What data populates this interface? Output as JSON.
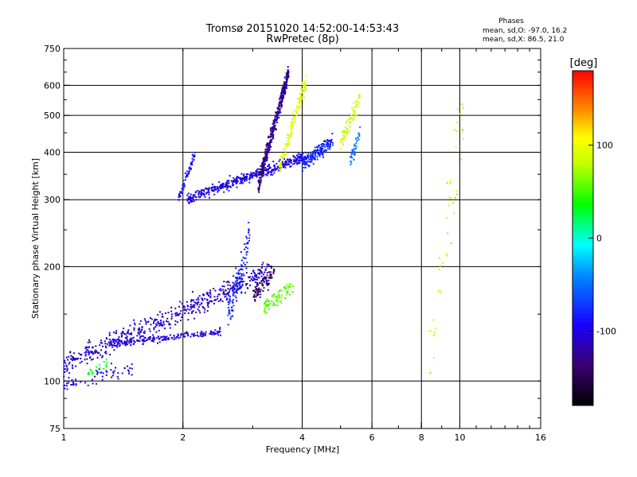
{
  "chart_data": {
    "type": "scatter",
    "title": "Tromsø 20151020 14:52:00-14:53:43",
    "subtitle": "RwPretec (8p)",
    "xlabel": "Frequency [MHz]",
    "ylabel": "Stationary phase Virtual Height [km]",
    "x_scale": "log",
    "y_scale": "log",
    "xlim": [
      1,
      16
    ],
    "ylim": [
      75,
      750
    ],
    "xticks": [
      1,
      2,
      4,
      6,
      8,
      10,
      16
    ],
    "xtick_labels": [
      "1",
      "2",
      "4",
      "6",
      "8",
      "10",
      "16"
    ],
    "yticks": [
      75,
      100,
      200,
      300,
      400,
      500,
      600,
      750
    ],
    "ytick_labels": [
      "75",
      "100",
      "200",
      "300",
      "400",
      "500",
      "600",
      "750"
    ],
    "grid": true,
    "stats": {
      "heading": "Phases",
      "line1": "mean, sd,O: -97.0, 16.2",
      "line2": "mean, sd,X:  86.5, 21.0"
    },
    "colorbar": {
      "label": "[deg]",
      "range": [
        -180,
        180
      ],
      "ticks": [
        -100,
        0,
        100
      ],
      "tick_labels": [
        "-100",
        "0",
        "100"
      ],
      "colormap": "rainbow"
    },
    "clusters": [
      {
        "description": "E-region lower trace, O-mode",
        "x_range": [
          1.0,
          3.3
        ],
        "y_start": 110,
        "y_end": 195,
        "phase": -110,
        "count": 520,
        "spread": 0.06
      },
      {
        "description": "E-region lower floor",
        "x_range": [
          1.3,
          2.5
        ],
        "y_start": 125,
        "y_end": 135,
        "phase": -105,
        "count": 180,
        "spread": 0.02
      },
      {
        "description": "Es spread near 2.6-2.9 MHz",
        "x_range": [
          2.6,
          2.95
        ],
        "y_start": 150,
        "y_end": 240,
        "phase": -80,
        "count": 110,
        "spread": 0.1
      },
      {
        "description": "Dense patch near 3.1-3.4 MHz",
        "x_range": [
          3.0,
          3.4
        ],
        "y_start": 165,
        "y_end": 195,
        "phase": -140,
        "count": 90,
        "spread": 0.05
      },
      {
        "description": "Low cluster near 1.0-1.5 MHz",
        "x_range": [
          1.0,
          1.5
        ],
        "y_start": 98,
        "y_end": 108,
        "phase": -100,
        "count": 60,
        "spread": 0.04
      },
      {
        "description": "E-region X-mode echoes",
        "x_range": [
          3.2,
          3.8
        ],
        "y_start": 155,
        "y_end": 180,
        "phase": 55,
        "count": 80,
        "spread": 0.05
      },
      {
        "description": "Green echoes near 1.2 MHz",
        "x_range": [
          1.15,
          1.3
        ],
        "y_start": 104,
        "y_end": 112,
        "phase": 30,
        "count": 20,
        "spread": 0.03
      },
      {
        "description": "F-region floor O-mode",
        "x_range": [
          2.05,
          4.1
        ],
        "y_start": 302,
        "y_end": 390,
        "phase": -100,
        "count": 420,
        "spread": 0.03
      },
      {
        "description": "F-region cusp O-mode",
        "x_range": [
          3.1,
          3.7
        ],
        "y_start": 330,
        "y_end": 650,
        "phase": -125,
        "count": 420,
        "spread": 0.05
      },
      {
        "description": "F-region X-mode trace",
        "x_range": [
          3.5,
          4.1
        ],
        "y_start": 360,
        "y_end": 620,
        "phase": 95,
        "count": 140,
        "spread": 0.05
      },
      {
        "description": "F2 high echoes near 4.1-4.8 MHz",
        "x_range": [
          4.0,
          4.8
        ],
        "y_start": 370,
        "y_end": 430,
        "phase": -80,
        "count": 170,
        "spread": 0.04
      },
      {
        "description": "X-mode echoes near 5.0-5.6 MHz",
        "x_range": [
          5.0,
          5.6
        ],
        "y_start": 420,
        "y_end": 560,
        "phase": 90,
        "count": 80,
        "spread": 0.06
      },
      {
        "description": "Cyan echoes near 5.4-5.6 MHz",
        "x_range": [
          5.3,
          5.6
        ],
        "y_start": 380,
        "y_end": 450,
        "phase": -50,
        "count": 40,
        "spread": 0.04
      },
      {
        "description": "Lower F-branch left edge",
        "x_range": [
          1.95,
          2.15
        ],
        "y_start": 300,
        "y_end": 400,
        "phase": -90,
        "count": 60,
        "spread": 0.03
      },
      {
        "description": "Sparse echoes near 8-10 MHz",
        "x_range": [
          8.2,
          10.3
        ],
        "y_start": 110,
        "y_end": 560,
        "phase": 80,
        "count": 45,
        "spread": 0.3
      }
    ]
  }
}
